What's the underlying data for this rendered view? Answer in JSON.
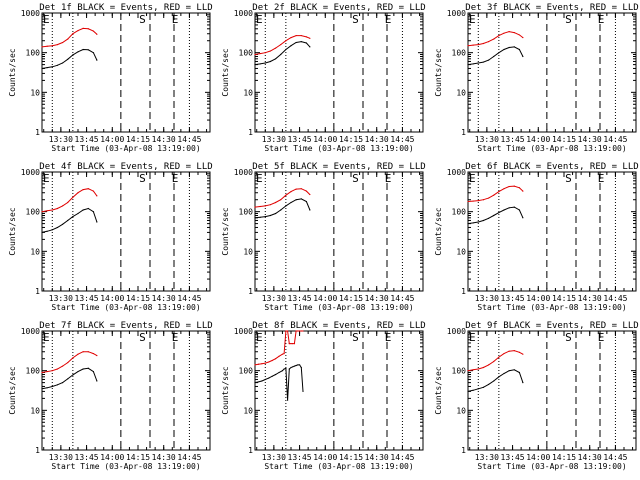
{
  "figure": {
    "black_series": "Events",
    "red_series": "LLD",
    "colors": {
      "events": "#000000",
      "lld": "#e00000",
      "axes": "#000000",
      "background": "#ffffff"
    }
  },
  "chart_data": [
    {
      "type": "line",
      "title": "Det 1f BLACK = Events, RED = LLD",
      "xlabel": "Start Time (03-Apr-08 13:19:00)",
      "ylabel": "Counts/sec",
      "y_scale": "log",
      "ylim": [
        1,
        1000
      ],
      "xlim": [
        "13:19:00",
        "14:57:00"
      ],
      "x_ticks": [
        "13:30",
        "13:45",
        "14:00",
        "14:15",
        "14:30",
        "14:45"
      ],
      "y_ticks": [
        "1",
        "10",
        "100",
        "1000"
      ],
      "markers": {
        "E_start": "13:19:00",
        "S": "14:18:00",
        "E_end": "14:37:00"
      },
      "dotted_lines": [
        "13:25:00",
        "13:37:00",
        "14:45:00"
      ],
      "dashed_lines": [
        "14:05:00",
        "14:22:00",
        "14:36:00"
      ],
      "series": [
        {
          "name": "Events",
          "x": [
            "13:19",
            "13:22",
            "13:25",
            "13:28",
            "13:31",
            "13:34",
            "13:37",
            "13:40",
            "13:43",
            "13:46",
            "13:49",
            "13:51"
          ],
          "y": [
            40,
            42,
            44,
            48,
            55,
            68,
            88,
            105,
            120,
            118,
            100,
            65
          ]
        },
        {
          "name": "LLD",
          "x": [
            "13:19",
            "13:22",
            "13:25",
            "13:28",
            "13:31",
            "13:34",
            "13:37",
            "13:40",
            "13:43",
            "13:46",
            "13:49",
            "13:51"
          ],
          "y": [
            140,
            145,
            150,
            160,
            180,
            220,
            300,
            360,
            410,
            400,
            350,
            290
          ]
        }
      ]
    },
    {
      "type": "line",
      "title": "Det 2f BLACK = Events, RED = LLD",
      "xlabel": "Start Time (03-Apr-08 13:19:00)",
      "ylabel": "Counts/sec",
      "y_scale": "log",
      "ylim": [
        1,
        1000
      ],
      "xlim": [
        "13:19:00",
        "14:57:00"
      ],
      "x_ticks": [
        "13:30",
        "13:45",
        "14:00",
        "14:15",
        "14:30",
        "14:45"
      ],
      "y_ticks": [
        "1",
        "10",
        "100",
        "1000"
      ],
      "markers": {
        "E_start": "13:19:00",
        "S": "14:18:00",
        "E_end": "14:37:00"
      },
      "dotted_lines": [
        "13:25:00",
        "13:37:00",
        "14:45:00"
      ],
      "dashed_lines": [
        "14:05:00",
        "14:22:00",
        "14:36:00"
      ],
      "series": [
        {
          "name": "Events",
          "x": [
            "13:19",
            "13:22",
            "13:25",
            "13:28",
            "13:31",
            "13:34",
            "13:37",
            "13:40",
            "13:43",
            "13:46",
            "13:49",
            "13:51"
          ],
          "y": [
            50,
            52,
            55,
            60,
            70,
            90,
            120,
            150,
            180,
            190,
            175,
            140
          ]
        },
        {
          "name": "LLD",
          "x": [
            "13:19",
            "13:22",
            "13:25",
            "13:28",
            "13:31",
            "13:34",
            "13:37",
            "13:40",
            "13:43",
            "13:46",
            "13:49",
            "13:51"
          ],
          "y": [
            90,
            95,
            100,
            110,
            130,
            160,
            200,
            240,
            270,
            270,
            250,
            230
          ]
        }
      ]
    },
    {
      "type": "line",
      "title": "Det 3f BLACK = Events, RED = LLD",
      "xlabel": "Start Time (03-Apr-08 13:19:00)",
      "ylabel": "Counts/sec",
      "y_scale": "log",
      "ylim": [
        1,
        1000
      ],
      "xlim": [
        "13:19:00",
        "14:57:00"
      ],
      "x_ticks": [
        "13:30",
        "13:45",
        "14:00",
        "14:15",
        "14:30",
        "14:45"
      ],
      "y_ticks": [
        "1",
        "10",
        "100",
        "1000"
      ],
      "markers": {
        "E_start": "13:19:00",
        "S": "14:18:00",
        "E_end": "14:37:00"
      },
      "dotted_lines": [
        "13:25:00",
        "13:37:00",
        "14:45:00"
      ],
      "dashed_lines": [
        "14:05:00",
        "14:22:00",
        "14:36:00"
      ],
      "series": [
        {
          "name": "Events",
          "x": [
            "13:19",
            "13:22",
            "13:25",
            "13:28",
            "13:31",
            "13:34",
            "13:37",
            "13:40",
            "13:43",
            "13:46",
            "13:49",
            "13:51"
          ],
          "y": [
            50,
            52,
            55,
            58,
            65,
            80,
            100,
            120,
            135,
            140,
            120,
            80
          ]
        },
        {
          "name": "LLD",
          "x": [
            "13:19",
            "13:22",
            "13:25",
            "13:28",
            "13:31",
            "13:34",
            "13:37",
            "13:40",
            "13:43",
            "13:46",
            "13:49",
            "13:51"
          ],
          "y": [
            150,
            155,
            160,
            170,
            190,
            220,
            270,
            310,
            340,
            320,
            280,
            240
          ]
        }
      ]
    },
    {
      "type": "line",
      "title": "Det 4f BLACK = Events, RED = LLD",
      "xlabel": "Start Time (03-Apr-08 13:19:00)",
      "ylabel": "Counts/sec",
      "y_scale": "log",
      "ylim": [
        1,
        1000
      ],
      "xlim": [
        "13:19:00",
        "14:57:00"
      ],
      "x_ticks": [
        "13:30",
        "13:45",
        "14:00",
        "14:15",
        "14:30",
        "14:45"
      ],
      "y_ticks": [
        "1",
        "10",
        "100",
        "1000"
      ],
      "markers": {
        "E_start": "13:19:00",
        "S": "14:18:00",
        "E_end": "14:37:00"
      },
      "dotted_lines": [
        "13:25:00",
        "13:37:00",
        "14:45:00"
      ],
      "dashed_lines": [
        "14:05:00",
        "14:22:00",
        "14:36:00"
      ],
      "series": [
        {
          "name": "Events",
          "x": [
            "13:19",
            "13:22",
            "13:25",
            "13:28",
            "13:31",
            "13:34",
            "13:37",
            "13:40",
            "13:43",
            "13:46",
            "13:49",
            "13:51"
          ],
          "y": [
            30,
            32,
            35,
            40,
            48,
            60,
            75,
            90,
            110,
            120,
            100,
            55
          ]
        },
        {
          "name": "LLD",
          "x": [
            "13:19",
            "13:22",
            "13:25",
            "13:28",
            "13:31",
            "13:34",
            "13:37",
            "13:40",
            "13:43",
            "13:46",
            "13:49",
            "13:51"
          ],
          "y": [
            100,
            105,
            110,
            120,
            140,
            170,
            230,
            300,
            360,
            380,
            330,
            250
          ]
        }
      ]
    },
    {
      "type": "line",
      "title": "Det 5f BLACK = Events, RED = LLD",
      "xlabel": "Start Time (03-Apr-08 13:19:00)",
      "ylabel": "Counts/sec",
      "y_scale": "log",
      "ylim": [
        1,
        1000
      ],
      "xlim": [
        "13:19:00",
        "14:57:00"
      ],
      "x_ticks": [
        "13:30",
        "13:45",
        "14:00",
        "14:15",
        "14:30",
        "14:45"
      ],
      "y_ticks": [
        "1",
        "10",
        "100",
        "1000"
      ],
      "markers": {
        "E_start": "13:19:00",
        "S": "14:18:00",
        "E_end": "14:37:00"
      },
      "dotted_lines": [
        "13:25:00",
        "13:37:00",
        "14:45:00"
      ],
      "dashed_lines": [
        "14:05:00",
        "14:22:00",
        "14:36:00"
      ],
      "series": [
        {
          "name": "Events",
          "x": [
            "13:19",
            "13:22",
            "13:25",
            "13:28",
            "13:31",
            "13:34",
            "13:37",
            "13:40",
            "13:43",
            "13:46",
            "13:49",
            "13:51"
          ],
          "y": [
            70,
            72,
            75,
            80,
            90,
            110,
            140,
            170,
            200,
            210,
            180,
            110
          ]
        },
        {
          "name": "LLD",
          "x": [
            "13:19",
            "13:22",
            "13:25",
            "13:28",
            "13:31",
            "13:34",
            "13:37",
            "13:40",
            "13:43",
            "13:46",
            "13:49",
            "13:51"
          ],
          "y": [
            130,
            135,
            140,
            150,
            170,
            200,
            260,
            320,
            370,
            380,
            330,
            270
          ]
        }
      ]
    },
    {
      "type": "line",
      "title": "Det 6f BLACK = Events, RED = LLD",
      "xlabel": "Start Time (03-Apr-08 13:19:00)",
      "ylabel": "Counts/sec",
      "y_scale": "log",
      "ylim": [
        1,
        1000
      ],
      "xlim": [
        "13:19:00",
        "14:57:00"
      ],
      "x_ticks": [
        "13:30",
        "13:45",
        "14:00",
        "14:15",
        "14:30",
        "14:45"
      ],
      "y_ticks": [
        "1",
        "10",
        "100",
        "1000"
      ],
      "markers": {
        "E_start": "13:19:00",
        "S": "14:18:00",
        "E_end": "14:37:00"
      },
      "dotted_lines": [
        "13:25:00",
        "13:37:00",
        "14:45:00"
      ],
      "dashed_lines": [
        "14:05:00",
        "14:22:00",
        "14:36:00"
      ],
      "series": [
        {
          "name": "Events",
          "x": [
            "13:19",
            "13:22",
            "13:25",
            "13:28",
            "13:31",
            "13:34",
            "13:37",
            "13:40",
            "13:43",
            "13:46",
            "13:49",
            "13:51"
          ],
          "y": [
            50,
            52,
            55,
            60,
            68,
            80,
            95,
            110,
            125,
            130,
            110,
            70
          ]
        },
        {
          "name": "LLD",
          "x": [
            "13:19",
            "13:22",
            "13:25",
            "13:28",
            "13:31",
            "13:34",
            "13:37",
            "13:40",
            "13:43",
            "13:46",
            "13:49",
            "13:51"
          ],
          "y": [
            180,
            185,
            190,
            200,
            220,
            260,
            320,
            380,
            430,
            440,
            400,
            330
          ]
        }
      ]
    },
    {
      "type": "line",
      "title": "Det 7f BLACK = Events, RED = LLD",
      "xlabel": "Start Time (03-Apr-08 13:19:00)",
      "ylabel": "Counts/sec",
      "y_scale": "log",
      "ylim": [
        1,
        1000
      ],
      "xlim": [
        "13:19:00",
        "14:57:00"
      ],
      "x_ticks": [
        "13:30",
        "13:45",
        "14:00",
        "14:15",
        "14:30",
        "14:45"
      ],
      "y_ticks": [
        "1",
        "10",
        "100",
        "1000"
      ],
      "markers": {
        "E_start": "13:19:00",
        "S": "14:18:00",
        "E_end": "14:37:00"
      },
      "dotted_lines": [
        "13:25:00",
        "13:37:00",
        "14:45:00"
      ],
      "dashed_lines": [
        "14:05:00",
        "14:22:00",
        "14:36:00"
      ],
      "series": [
        {
          "name": "Events",
          "x": [
            "13:19",
            "13:22",
            "13:25",
            "13:28",
            "13:31",
            "13:34",
            "13:37",
            "13:40",
            "13:43",
            "13:46",
            "13:49",
            "13:51"
          ],
          "y": [
            35,
            37,
            40,
            44,
            50,
            62,
            78,
            95,
            110,
            115,
            95,
            55
          ]
        },
        {
          "name": "LLD",
          "x": [
            "13:19",
            "13:22",
            "13:25",
            "13:28",
            "13:31",
            "13:34",
            "13:37",
            "13:40",
            "13:43",
            "13:46",
            "13:49",
            "13:51"
          ],
          "y": [
            90,
            95,
            100,
            110,
            130,
            160,
            210,
            260,
            300,
            300,
            270,
            240
          ]
        }
      ]
    },
    {
      "type": "line",
      "title": "Det 8f BLACK = Events, RED = LLD",
      "xlabel": "Start Time (03-Apr-08 13:19:00)",
      "ylabel": "Counts/sec",
      "y_scale": "log",
      "ylim": [
        1,
        1000
      ],
      "xlim": [
        "13:19:00",
        "14:57:00"
      ],
      "x_ticks": [
        "13:30",
        "13:45",
        "14:00",
        "14:15",
        "14:30",
        "14:45"
      ],
      "y_ticks": [
        "1",
        "10",
        "100",
        "1000"
      ],
      "markers": {
        "E_start": "13:19:00",
        "S": "14:18:00",
        "E_end": "14:37:00"
      },
      "dotted_lines": [
        "13:25:00",
        "13:37:00",
        "14:45:00"
      ],
      "dashed_lines": [
        "14:05:00",
        "14:22:00",
        "14:36:00"
      ],
      "series": [
        {
          "name": "Events",
          "x": [
            "13:19",
            "13:21",
            "13:23",
            "13:25",
            "13:27",
            "13:29",
            "13:31",
            "13:33",
            "13:35",
            "13:36",
            "13:37",
            "13:38",
            "13:39",
            "13:40",
            "13:41",
            "13:42",
            "13:43",
            "13:44",
            "13:45",
            "13:46",
            "13:47"
          ],
          "y": [
            50,
            52,
            55,
            60,
            65,
            72,
            80,
            90,
            100,
            110,
            115,
            18,
            110,
            120,
            125,
            130,
            135,
            140,
            140,
            120,
            30
          ]
        },
        {
          "name": "LLD",
          "x": [
            "13:19",
            "13:21",
            "13:23",
            "13:25",
            "13:27",
            "13:29",
            "13:31",
            "13:33",
            "13:35",
            "13:36",
            "13:37",
            "13:38",
            "13:39",
            "13:40",
            "13:41",
            "13:42",
            "13:43",
            "13:44",
            "13:45",
            "13:46",
            "13:47"
          ],
          "y": [
            140,
            145,
            150,
            155,
            165,
            180,
            200,
            230,
            260,
            270,
            1000,
            1000,
            480,
            480,
            480,
            480,
            1000,
            1000,
            1000,
            1000,
            1000
          ]
        }
      ]
    },
    {
      "type": "line",
      "title": "Det 9f BLACK = Events, RED = LLD",
      "xlabel": "Start Time (03-Apr-08 13:19:00)",
      "ylabel": "Counts/sec",
      "y_scale": "log",
      "ylim": [
        1,
        1000
      ],
      "xlim": [
        "13:19:00",
        "14:57:00"
      ],
      "x_ticks": [
        "13:30",
        "13:45",
        "14:00",
        "14:15",
        "14:30",
        "14:45"
      ],
      "y_ticks": [
        "1",
        "10",
        "100",
        "1000"
      ],
      "markers": {
        "E_start": "13:19:00",
        "S": "14:18:00",
        "E_end": "14:37:00"
      },
      "dotted_lines": [
        "13:25:00",
        "13:37:00",
        "14:45:00"
      ],
      "dashed_lines": [
        "14:05:00",
        "14:22:00",
        "14:36:00"
      ],
      "series": [
        {
          "name": "Events",
          "x": [
            "13:19",
            "13:22",
            "13:25",
            "13:28",
            "13:31",
            "13:34",
            "13:37",
            "13:40",
            "13:43",
            "13:46",
            "13:49",
            "13:51"
          ],
          "y": [
            30,
            32,
            35,
            38,
            45,
            55,
            70,
            85,
            100,
            105,
            90,
            50
          ]
        },
        {
          "name": "LLD",
          "x": [
            "13:19",
            "13:22",
            "13:25",
            "13:28",
            "13:31",
            "13:34",
            "13:37",
            "13:40",
            "13:43",
            "13:46",
            "13:49",
            "13:51"
          ],
          "y": [
            100,
            105,
            110,
            120,
            140,
            170,
            220,
            270,
            310,
            320,
            290,
            260
          ]
        }
      ]
    }
  ]
}
